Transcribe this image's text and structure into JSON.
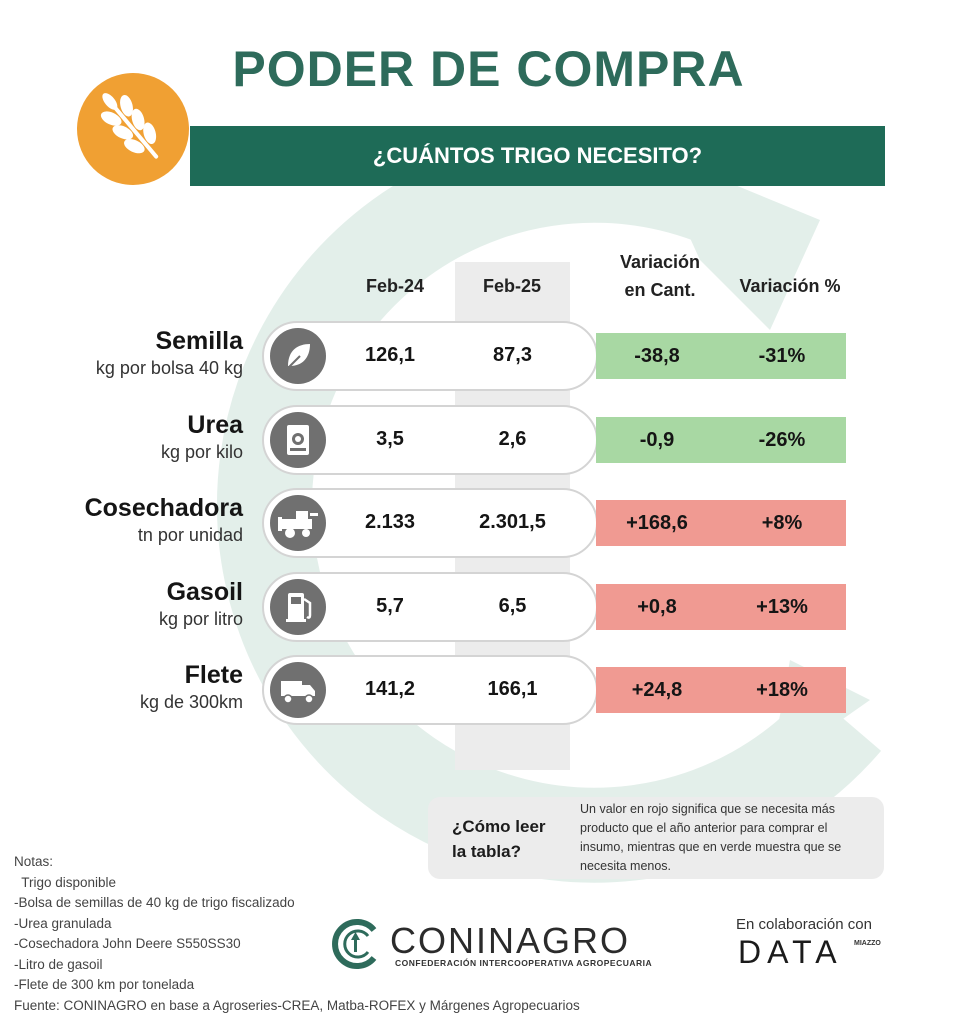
{
  "title": "PODER DE COMPRA",
  "subtitle": "¿CUÁNTOS TRIGO NECESITO?",
  "colors": {
    "green_dark": "#1e6b57",
    "title": "#2e6b5b",
    "orange": "#f0a033",
    "positive": "#a8d8a3",
    "negative": "#f09a92",
    "ring": "#e3efea"
  },
  "headers": {
    "feb24": "Feb-24",
    "feb25": "Feb-25",
    "var_cant_1": "Variación",
    "var_cant_2": "en Cant.",
    "var_pct": "Variación %"
  },
  "chart_data": {
    "type": "table",
    "title": "PODER DE COMPRA",
    "subtitle": "¿CUÁNTOS TRIGO NECESITO?",
    "columns": [
      "Feb-24",
      "Feb-25",
      "Variación en Cant.",
      "Variación %"
    ],
    "rows": [
      {
        "name": "Semilla",
        "unit": "kg por bolsa 40 kg",
        "icon": "leaf-icon",
        "feb24": "126,1",
        "feb25": "87,3",
        "var_cant": "-38,8",
        "var_pct": "-31%",
        "status": "green"
      },
      {
        "name": "Urea",
        "unit": "kg por kilo",
        "icon": "fertilizer-bag-icon",
        "feb24": "3,5",
        "feb25": "2,6",
        "var_cant": "-0,9",
        "var_pct": "-26%",
        "status": "green"
      },
      {
        "name": "Cosechadora",
        "unit": "tn por unidad",
        "icon": "harvester-icon",
        "feb24": "2.133",
        "feb25": "2.301,5",
        "var_cant": "+168,6",
        "var_pct": "+8%",
        "status": "red"
      },
      {
        "name": "Gasoil",
        "unit": "kg por litro",
        "icon": "fuel-pump-icon",
        "feb24": "5,7",
        "feb25": "6,5",
        "var_cant": "+0,8",
        "var_pct": "+13%",
        "status": "red"
      },
      {
        "name": "Flete",
        "unit": "kg de 300km",
        "icon": "truck-icon",
        "feb24": "141,2",
        "feb25": "166,1",
        "var_cant": "+24,8",
        "var_pct": "+18%",
        "status": "red"
      }
    ]
  },
  "howto": {
    "question_1": "¿Cómo leer",
    "question_2": "la tabla?",
    "answer_lines": [
      "Un valor en rojo significa que se necesita más",
      "producto que el año anterior para comprar el",
      "insumo, mientras que en verde muestra que se",
      "necesita menos."
    ]
  },
  "notes": [
    "Notas:",
    "  Trigo disponible",
    "-Bolsa de semillas de 40 kg de trigo fiscalizado",
    "-Urea granulada",
    "-Cosechadora John Deere S550SS30",
    "-Litro de gasoil",
    "-Flete de 300 km por tonelada",
    "Fuente: CONINAGRO en base a Agroseries-CREA, Matba-ROFEX y Márgenes Agropecuarios"
  ],
  "coninagro": {
    "name": "CONINAGRO",
    "tagline": "CONFEDERACIÓN INTERCOOPERATIVA AGROPECUARIA"
  },
  "collab": {
    "label": "En colaboración con",
    "brand": "DATA",
    "brand_sub": "MIAZZO"
  }
}
